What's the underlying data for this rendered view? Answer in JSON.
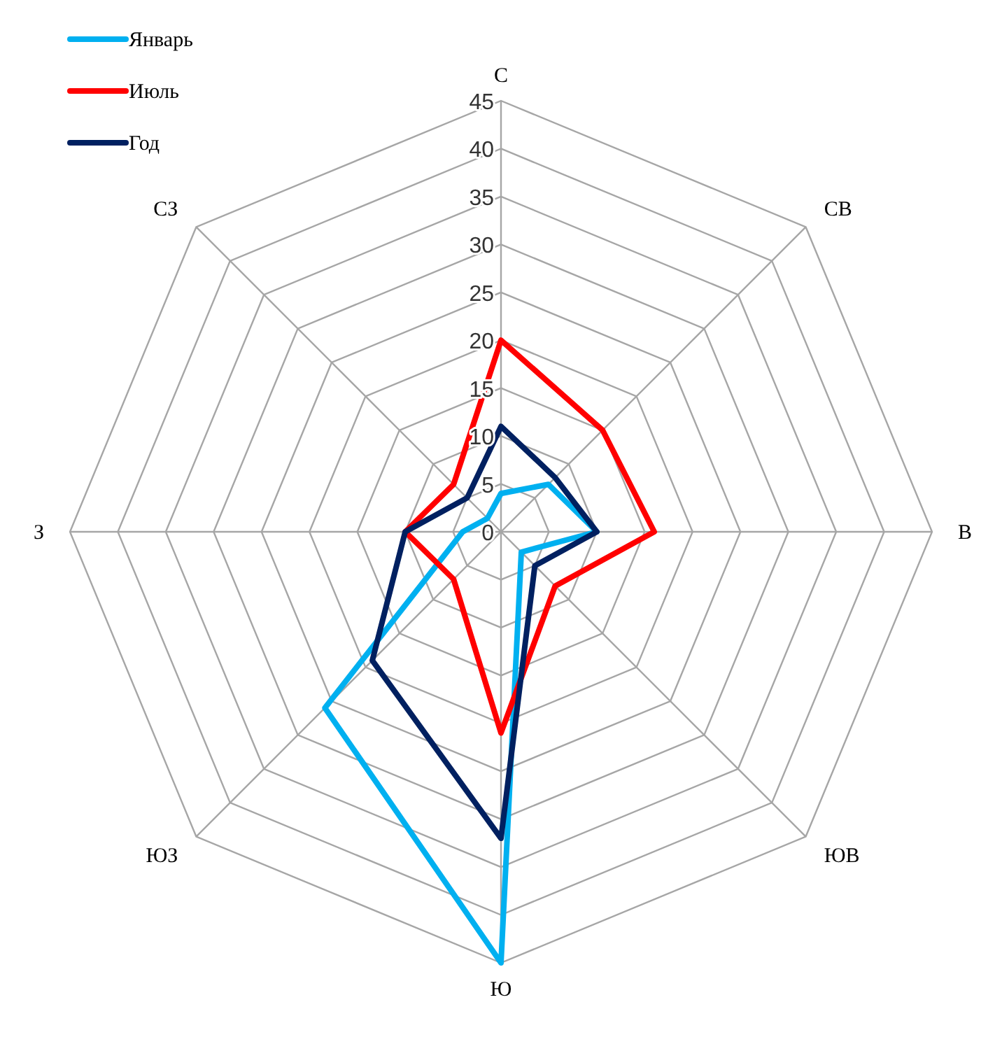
{
  "chart_data": {
    "type": "radar",
    "categories": [
      "С",
      "СВ",
      "В",
      "ЮВ",
      "Ю",
      "ЮЗ",
      "З",
      "СЗ"
    ],
    "series": [
      {
        "name": "Январь",
        "color": "#00b0f0",
        "values": [
          4,
          7,
          10,
          3,
          45,
          26,
          4,
          2
        ]
      },
      {
        "name": "Июль",
        "color": "#ff0000",
        "values": [
          20,
          15,
          16,
          8,
          21,
          7,
          10,
          7
        ]
      },
      {
        "name": "Год",
        "color": "#002060",
        "values": [
          11,
          8,
          10,
          5,
          32,
          19,
          10,
          5
        ]
      }
    ],
    "ylim": [
      0,
      45
    ],
    "yticks": [
      0,
      5,
      10,
      15,
      20,
      25,
      30,
      35,
      40,
      45
    ],
    "grid": true,
    "legend": "top left",
    "marker": "none"
  }
}
